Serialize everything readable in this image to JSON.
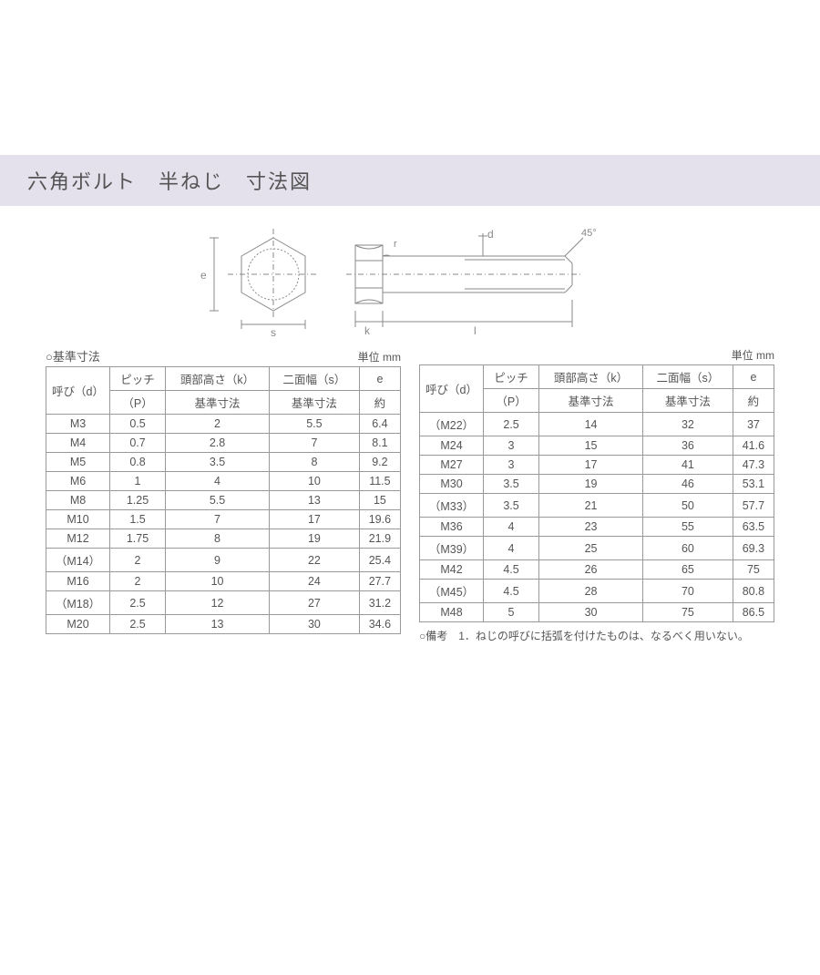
{
  "header": {
    "title": "六角ボルト　半ねじ　寸法図"
  },
  "diagram": {
    "labels": {
      "e": "e",
      "s": "s",
      "k": "k",
      "l": "l",
      "d": "d",
      "r": "r",
      "angle": "45°"
    }
  },
  "table_left": {
    "caption": "○基準寸法",
    "unit": "単位 mm",
    "header_top": [
      "呼び（d）",
      "ピッチ",
      "頭部高さ（k）",
      "二面幅（s）",
      "e"
    ],
    "header_bot": [
      "（P）",
      "基準寸法",
      "基準寸法",
      "約"
    ],
    "rows": [
      [
        "M3",
        "0.5",
        "2",
        "5.5",
        "6.4"
      ],
      [
        "M4",
        "0.7",
        "2.8",
        "7",
        "8.1"
      ],
      [
        "M5",
        "0.8",
        "3.5",
        "8",
        "9.2"
      ],
      [
        "M6",
        "1",
        "4",
        "10",
        "11.5"
      ],
      [
        "M8",
        "1.25",
        "5.5",
        "13",
        "15"
      ],
      [
        "M10",
        "1.5",
        "7",
        "17",
        "19.6"
      ],
      [
        "M12",
        "1.75",
        "8",
        "19",
        "21.9"
      ],
      [
        "（M14）",
        "2",
        "9",
        "22",
        "25.4"
      ],
      [
        "M16",
        "2",
        "10",
        "24",
        "27.7"
      ],
      [
        "（M18）",
        "2.5",
        "12",
        "27",
        "31.2"
      ],
      [
        "M20",
        "2.5",
        "13",
        "30",
        "34.6"
      ]
    ]
  },
  "table_right": {
    "caption": "",
    "unit": "単位 mm",
    "header_top": [
      "呼び（d）",
      "ピッチ",
      "頭部高さ（k）",
      "二面幅（s）",
      "e"
    ],
    "header_bot": [
      "（P）",
      "基準寸法",
      "基準寸法",
      "約"
    ],
    "rows": [
      [
        "（M22）",
        "2.5",
        "14",
        "32",
        "37"
      ],
      [
        "M24",
        "3",
        "15",
        "36",
        "41.6"
      ],
      [
        "M27",
        "3",
        "17",
        "41",
        "47.3"
      ],
      [
        "M30",
        "3.5",
        "19",
        "46",
        "53.1"
      ],
      [
        "（M33）",
        "3.5",
        "21",
        "50",
        "57.7"
      ],
      [
        "M36",
        "4",
        "23",
        "55",
        "63.5"
      ],
      [
        "（M39）",
        "4",
        "25",
        "60",
        "69.3"
      ],
      [
        "M42",
        "4.5",
        "26",
        "65",
        "75"
      ],
      [
        "（M45）",
        "4.5",
        "28",
        "70",
        "80.8"
      ],
      [
        "M48",
        "5",
        "30",
        "75",
        "86.5"
      ]
    ],
    "note": "○備考　1．ねじの呼びに括弧を付けたものは、なるべく用いない。"
  },
  "colors": {
    "band": "#e4e1ec",
    "text": "#555555",
    "border": "#999999",
    "bg": "#ffffff"
  }
}
